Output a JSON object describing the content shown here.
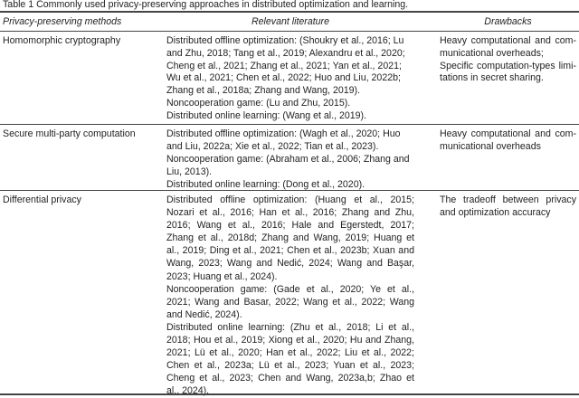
{
  "caption": "Table 1 Commonly used privacy-preserving approaches in distributed optimization and learning.",
  "headers": [
    "Privacy-preserving methods",
    "Relevant literature",
    "Drawbacks"
  ],
  "rows": [
    {
      "method": "Homomorphic cryptography",
      "literature": [
        "Distributed offline optimization: (Shoukry et al., 2016; Lu",
        "and Zhu, 2018; Tang et al., 2019; Alexandru et al., 2020;",
        "Cheng et al., 2021; Zhang et al., 2021; Yan et al., 2021;",
        "Wu et al., 2021; Chen et al., 2022; Huo and Liu, 2022b;",
        "Zhang et al., 2018a; Zhang and Wang, 2019).",
        "Noncooperation game: (Lu and Zhu, 2015).",
        "Distributed online learning: (Wang et al., 2019)."
      ],
      "drawbacks": [
        "Heavy computational and com-",
        "municational overheads;",
        "Specific computation-types limi-",
        "tations in secret sharing."
      ]
    },
    {
      "method": "Secure multi-party computation",
      "literature": [
        "Distributed offline optimization: (Wagh et al., 2020; Huo",
        "and Liu, 2022a; Xie et al., 2022; Tian et al., 2023).",
        "Noncooperation game: (Abraham et al., 2006; Zhang and",
        "Liu, 2013).",
        "Distributed online learning: (Dong et al., 2020)."
      ],
      "drawbacks": [
        "Heavy computational and com-",
        "municational overheads"
      ]
    },
    {
      "method": "Differential privacy",
      "literature": [
        "Distributed offline optimization: (Huang et al., 2015;",
        "Nozari et al., 2016; Han et al., 2016; Zhang and Zhu,",
        "2016; Wang et al., 2016; Hale and Egerstedt, 2017;",
        "Zhang et al., 2018d; Zhang and Wang, 2019; Huang et",
        "al., 2019; Ding et al., 2021; Chen et al., 2023b; Xuan and",
        "Wang, 2023; Wang and Nedić, 2024; Wang and Başar,",
        "2023; Huang et al., 2024).",
        "Noncooperation game: (Gade et al., 2020; Ye et al.,",
        "2021; Wang and Basar, 2022; Wang et al., 2022; Wang",
        "and Nedić, 2024).",
        "Distributed online learning: (Zhu et al., 2018; Li et al.,",
        "2018; Hou et al., 2019; Xiong et al., 2020; Hu and Zhang,",
        "2021; Lü et al., 2020; Han et al., 2022; Liu et al., 2022;",
        "Chen et al., 2023a; Lü et al., 2023; Yuan et al., 2023;",
        "Cheng et al., 2023; Chen and Wang, 2023a,b; Zhao et",
        "al., 2024)."
      ],
      "drawbacks": [
        "The tradeoff between privacy",
        "and optimization accuracy"
      ]
    }
  ]
}
